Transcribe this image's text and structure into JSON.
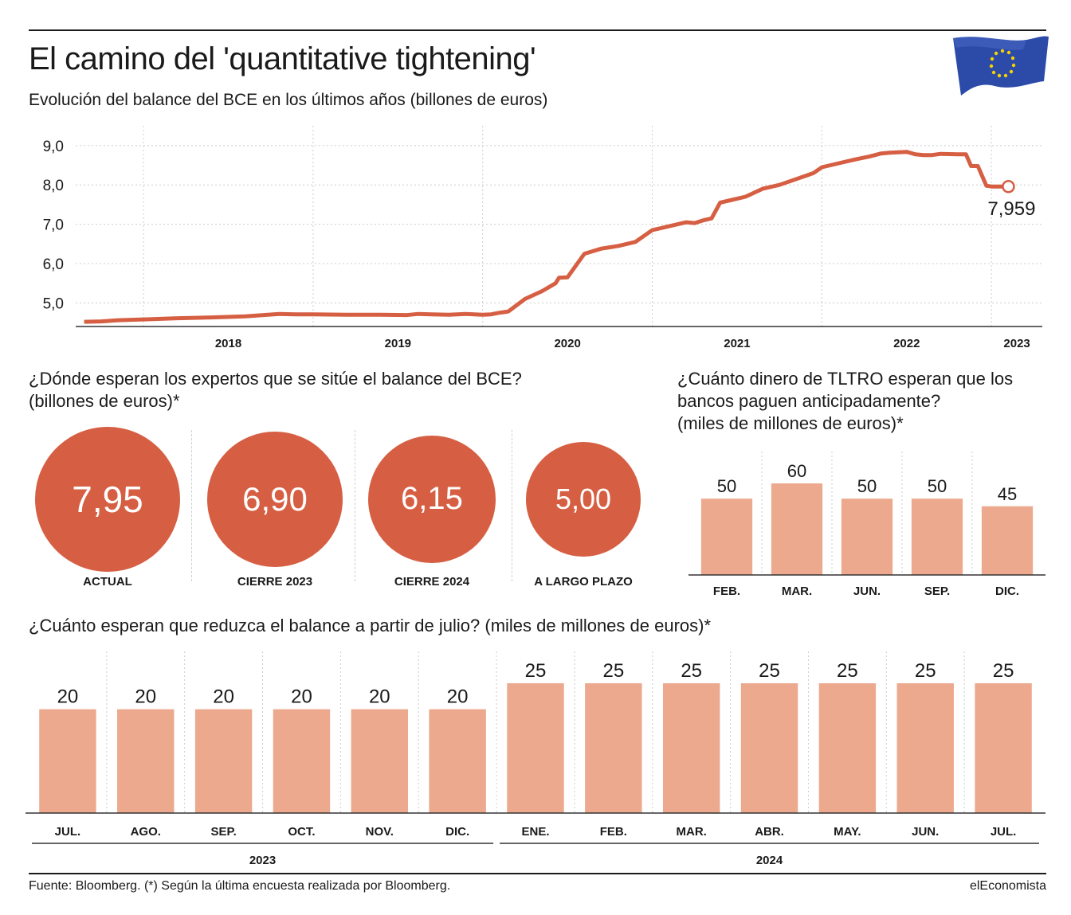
{
  "header": {
    "title": "El camino del 'quantitative tightening'",
    "subtitle": "Evolución del balance del BCE en los últimos años (billones de euros)"
  },
  "icons": {
    "flag": "eu-flag-icon"
  },
  "colors": {
    "line": "#d65f43",
    "circle": "#d65f43",
    "bar": "#eca98e",
    "text": "#1a1a1a"
  },
  "chart_data": [
    {
      "type": "line",
      "title": "Evolución del balance del BCE en los últimos años (billones de euros)",
      "x_unit": "year",
      "ylim": [
        4.4,
        9.3
      ],
      "xlim": [
        2017.6,
        2023.3
      ],
      "yticks": [
        "5,0",
        "6,0",
        "7,0",
        "8,0",
        "9,0"
      ],
      "ytick_values": [
        5,
        6,
        7,
        8,
        9
      ],
      "xticks": [
        "2018",
        "2019",
        "2020",
        "2021",
        "2022",
        "2023"
      ],
      "year_boundaries": [
        2018,
        2019,
        2020,
        2021,
        2022,
        2023
      ],
      "grid": true,
      "last_value_label": "7,959",
      "series": [
        {
          "x": [
            2017.65,
            2017.75,
            2017.85,
            2018.0,
            2018.2,
            2018.4,
            2018.6,
            2018.8,
            2018.9,
            2019.0,
            2019.2,
            2019.4,
            2019.55,
            2019.62,
            2019.7,
            2019.8,
            2019.9,
            2020.0,
            2020.05,
            2020.1,
            2020.15,
            2020.25,
            2020.35,
            2020.43,
            2020.45,
            2020.5,
            2020.6,
            2020.7,
            2020.8,
            2020.9,
            2021.0,
            2021.1,
            2021.2,
            2021.25,
            2021.3,
            2021.35,
            2021.4,
            2021.45,
            2021.55,
            2021.65,
            2021.75,
            2021.85,
            2021.95,
            2022.0,
            2022.1,
            2022.2,
            2022.28,
            2022.35,
            2022.4,
            2022.5,
            2022.55,
            2022.6,
            2022.65,
            2022.7,
            2022.8,
            2022.85,
            2022.88,
            2022.92,
            2022.97,
            2023.0,
            2023.1
          ],
          "y": [
            4.52,
            4.53,
            4.56,
            4.58,
            4.61,
            4.63,
            4.66,
            4.72,
            4.71,
            4.71,
            4.7,
            4.7,
            4.69,
            4.72,
            4.71,
            4.7,
            4.72,
            4.7,
            4.71,
            4.75,
            4.78,
            5.1,
            5.3,
            5.5,
            5.64,
            5.65,
            6.25,
            6.38,
            6.45,
            6.55,
            6.85,
            6.95,
            7.05,
            7.03,
            7.1,
            7.15,
            7.55,
            7.6,
            7.7,
            7.9,
            8.0,
            8.15,
            8.3,
            8.45,
            8.55,
            8.65,
            8.72,
            8.8,
            8.82,
            8.84,
            8.78,
            8.76,
            8.76,
            8.79,
            8.78,
            8.78,
            8.48,
            8.48,
            7.98,
            7.96,
            7.959
          ]
        }
      ]
    },
    {
      "type": "bubble",
      "title": "¿Dónde esperan los expertos que se sitúe el balance del BCE?",
      "subtitle": "(billones de euros)*",
      "categories": [
        "ACTUAL",
        "CIERRE 2023",
        "CIERRE 2024",
        "A LARGO PLAZO"
      ],
      "values": [
        7.95,
        6.9,
        6.15,
        5.0
      ],
      "labels": [
        "7,95",
        "6,90",
        "6,15",
        "5,00"
      ]
    },
    {
      "type": "bar",
      "title": "¿Cuánto dinero de TLTRO esperan que los bancos paguen anticipadamente?",
      "subtitle": "(miles de millones de euros)*",
      "categories": [
        "FEB.",
        "MAR.",
        "JUN.",
        "SEP.",
        "DIC."
      ],
      "values": [
        50,
        60,
        50,
        50,
        45
      ],
      "ylim": [
        0,
        60
      ]
    },
    {
      "type": "bar",
      "title": "¿Cuánto esperan que reduzca el balance a partir de julio? (miles de millones de euros)*",
      "categories": [
        "JUL.",
        "AGO.",
        "SEP.",
        "OCT.",
        "NOV.",
        "DIC.",
        "ENE.",
        "FEB.",
        "MAR.",
        "ABR.",
        "MAY.",
        "JUN.",
        "JUL."
      ],
      "values": [
        20,
        20,
        20,
        20,
        20,
        20,
        25,
        25,
        25,
        25,
        25,
        25,
        25
      ],
      "groups": [
        {
          "label": "2023",
          "count": 6
        },
        {
          "label": "2024",
          "count": 7
        }
      ],
      "ylim": [
        0,
        25
      ]
    }
  ],
  "footer": {
    "source": "Fuente: Bloomberg. (*) Según la última encuesta realizada por Bloomberg.",
    "brand": "elEconomista"
  }
}
